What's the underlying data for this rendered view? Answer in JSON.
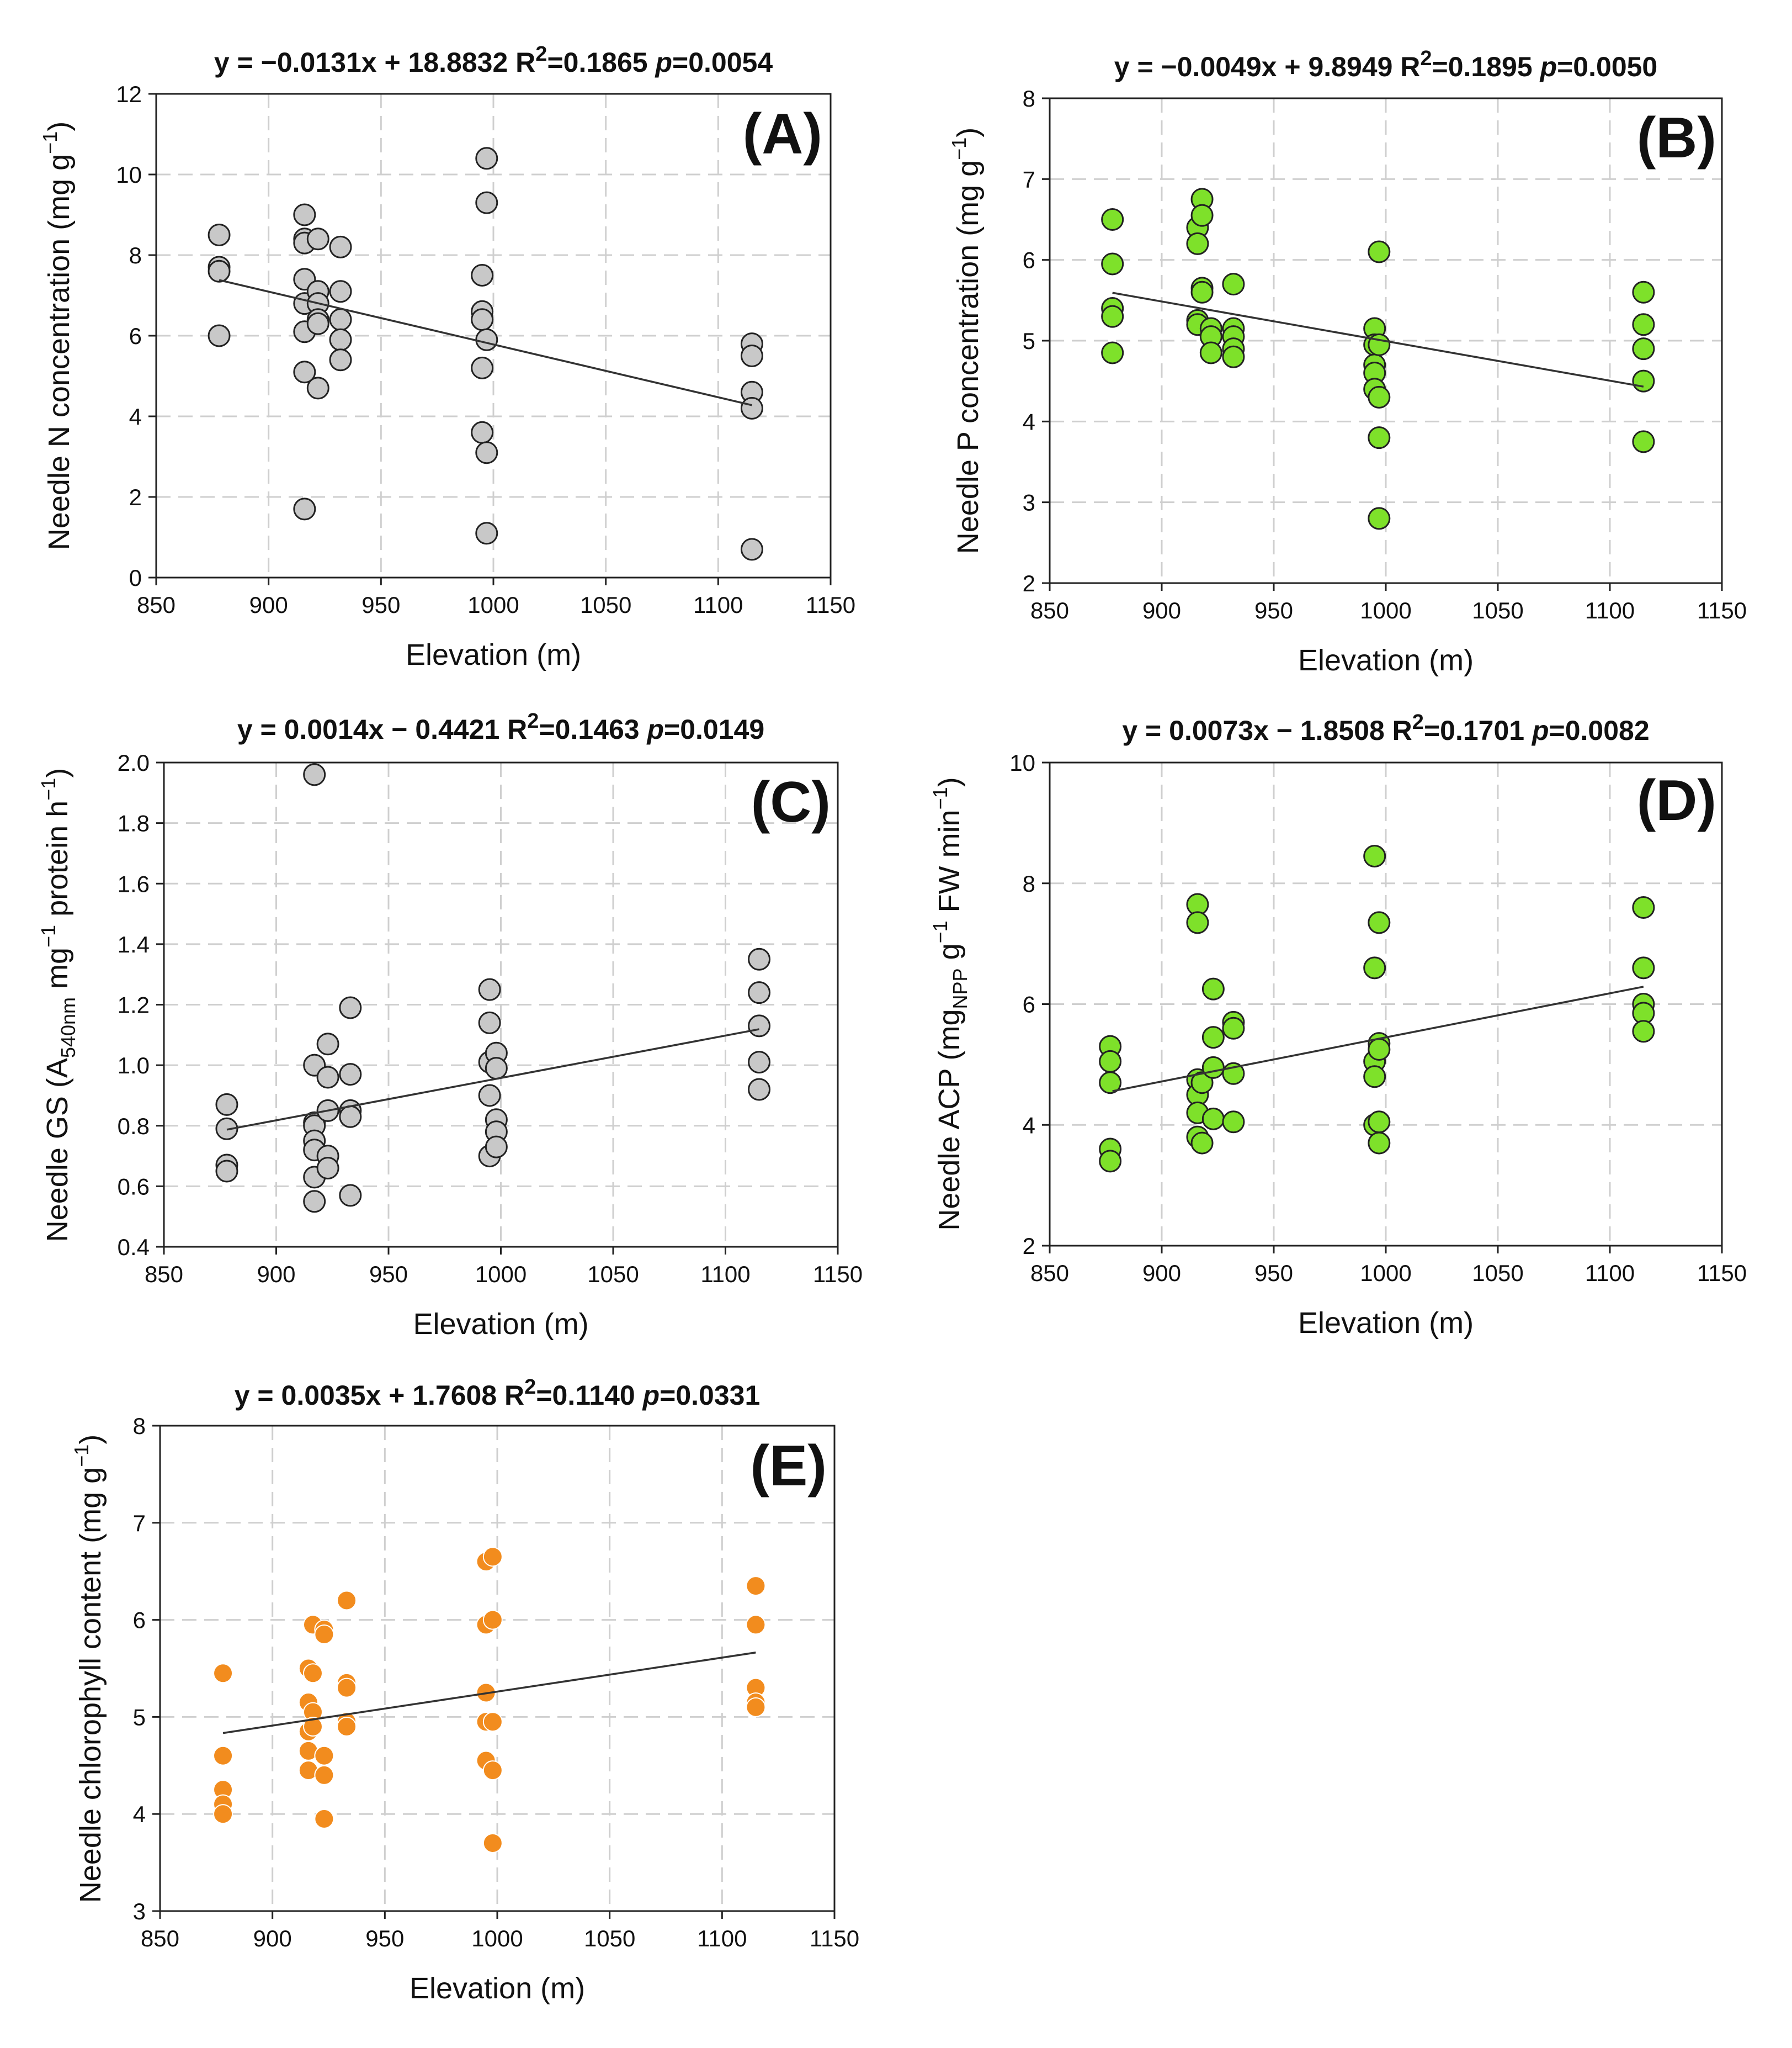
{
  "figure": {
    "x_axis_title": "Elevation (m)"
  },
  "chart_data": [
    {
      "type": "scatter",
      "panel": "(A)",
      "title": {
        "pre": "y = −0.0131x + 18.8832 R",
        "sup": "2",
        "mid": "=0.1865 ",
        "p_label": "p",
        "p_value": "=0.0054"
      },
      "ylabel": {
        "main": "Needle N concentration (mg g",
        "sup": "−1",
        "tail": ")"
      },
      "xlabel": "Elevation (m)",
      "xlim": [
        850,
        1150
      ],
      "ylim": [
        0,
        12
      ],
      "x_ticks": [
        850,
        900,
        950,
        1000,
        1050,
        1100,
        1150
      ],
      "x_tick_labels": [
        "850",
        "900",
        "950",
        "1000",
        "1050",
        "1100",
        "1150"
      ],
      "y_ticks": [
        0,
        2,
        4,
        6,
        8,
        10,
        12
      ],
      "y_tick_labels": [
        "0",
        "2",
        "4",
        "6",
        "8",
        "10",
        "12"
      ],
      "marker_color": "#c8c8c8",
      "marker_style": "outlined",
      "fit": {
        "slope": -0.0131,
        "intercept": 18.8832,
        "x_start": 878,
        "x_end": 1115
      },
      "points": [
        {
          "x": 878,
          "y": 8.5
        },
        {
          "x": 878,
          "y": 7.7
        },
        {
          "x": 878,
          "y": 7.6
        },
        {
          "x": 878,
          "y": 6.0
        },
        {
          "x": 916,
          "y": 9.0
        },
        {
          "x": 916,
          "y": 8.4
        },
        {
          "x": 916,
          "y": 8.3
        },
        {
          "x": 916,
          "y": 7.4
        },
        {
          "x": 916,
          "y": 6.8
        },
        {
          "x": 916,
          "y": 6.1
        },
        {
          "x": 916,
          "y": 5.1
        },
        {
          "x": 916,
          "y": 1.7
        },
        {
          "x": 922,
          "y": 8.4
        },
        {
          "x": 922,
          "y": 7.1
        },
        {
          "x": 922,
          "y": 6.8
        },
        {
          "x": 922,
          "y": 6.4
        },
        {
          "x": 922,
          "y": 6.3
        },
        {
          "x": 922,
          "y": 4.7
        },
        {
          "x": 932,
          "y": 8.2
        },
        {
          "x": 932,
          "y": 7.1
        },
        {
          "x": 932,
          "y": 6.4
        },
        {
          "x": 932,
          "y": 5.9
        },
        {
          "x": 932,
          "y": 5.4
        },
        {
          "x": 995,
          "y": 7.5
        },
        {
          "x": 995,
          "y": 6.6
        },
        {
          "x": 995,
          "y": 6.4
        },
        {
          "x": 995,
          "y": 5.2
        },
        {
          "x": 995,
          "y": 3.6
        },
        {
          "x": 997,
          "y": 10.4
        },
        {
          "x": 997,
          "y": 9.3
        },
        {
          "x": 997,
          "y": 5.9
        },
        {
          "x": 997,
          "y": 3.1
        },
        {
          "x": 997,
          "y": 1.1
        },
        {
          "x": 1115,
          "y": 5.8
        },
        {
          "x": 1115,
          "y": 5.5
        },
        {
          "x": 1115,
          "y": 4.6
        },
        {
          "x": 1115,
          "y": 4.2
        },
        {
          "x": 1115,
          "y": 0.7
        }
      ]
    },
    {
      "type": "scatter",
      "panel": "(B)",
      "title": {
        "pre": "y = −0.0049x + 9.8949 R",
        "sup": "2",
        "mid": "=0.1895 ",
        "p_label": "p",
        "p_value": "=0.0050"
      },
      "ylabel": {
        "main": "Needle P concentration (mg g",
        "sup": "−1",
        "tail": ")"
      },
      "xlabel": "Elevation (m)",
      "xlim": [
        850,
        1150
      ],
      "ylim": [
        2,
        8
      ],
      "x_ticks": [
        850,
        900,
        950,
        1000,
        1050,
        1100,
        1150
      ],
      "x_tick_labels": [
        "850",
        "900",
        "950",
        "1000",
        "1050",
        "1100",
        "1150"
      ],
      "y_ticks": [
        2,
        3,
        4,
        5,
        6,
        7,
        8
      ],
      "y_tick_labels": [
        "2",
        "3",
        "4",
        "5",
        "6",
        "7",
        "8"
      ],
      "marker_color": "#7ee12a",
      "marker_style": "outlined",
      "fit": {
        "slope": -0.0049,
        "intercept": 9.8949,
        "x_start": 878,
        "x_end": 1115
      },
      "points": [
        {
          "x": 878,
          "y": 6.5
        },
        {
          "x": 878,
          "y": 5.95
        },
        {
          "x": 878,
          "y": 5.4
        },
        {
          "x": 878,
          "y": 5.3
        },
        {
          "x": 878,
          "y": 4.85
        },
        {
          "x": 916,
          "y": 6.4
        },
        {
          "x": 916,
          "y": 6.2
        },
        {
          "x": 916,
          "y": 5.25
        },
        {
          "x": 916,
          "y": 5.2
        },
        {
          "x": 918,
          "y": 6.75
        },
        {
          "x": 918,
          "y": 6.55
        },
        {
          "x": 918,
          "y": 5.65
        },
        {
          "x": 918,
          "y": 5.6
        },
        {
          "x": 922,
          "y": 5.15
        },
        {
          "x": 922,
          "y": 5.05
        },
        {
          "x": 922,
          "y": 4.85
        },
        {
          "x": 932,
          "y": 5.7
        },
        {
          "x": 932,
          "y": 5.15
        },
        {
          "x": 932,
          "y": 5.05
        },
        {
          "x": 932,
          "y": 4.9
        },
        {
          "x": 932,
          "y": 4.8
        },
        {
          "x": 995,
          "y": 5.15
        },
        {
          "x": 995,
          "y": 4.95
        },
        {
          "x": 995,
          "y": 4.7
        },
        {
          "x": 995,
          "y": 4.6
        },
        {
          "x": 995,
          "y": 4.4
        },
        {
          "x": 997,
          "y": 6.1
        },
        {
          "x": 997,
          "y": 4.95
        },
        {
          "x": 997,
          "y": 4.3
        },
        {
          "x": 997,
          "y": 3.8
        },
        {
          "x": 997,
          "y": 2.8
        },
        {
          "x": 1115,
          "y": 5.6
        },
        {
          "x": 1115,
          "y": 5.2
        },
        {
          "x": 1115,
          "y": 4.9
        },
        {
          "x": 1115,
          "y": 4.5
        },
        {
          "x": 1115,
          "y": 3.75
        }
      ]
    },
    {
      "type": "scatter",
      "panel": "(C)",
      "title": {
        "pre": "y = 0.0014x − 0.4421 R",
        "sup": "2",
        "mid": "=0.1463 ",
        "p_label": "p",
        "p_value": "=0.0149"
      },
      "ylabel": {
        "main": "Needle GS (A",
        "sub": "540nm",
        "mid": " mg",
        "sup1": "−1",
        "mid2": " protein h",
        "sup2": "−1",
        "tail": ")"
      },
      "xlabel": "Elevation (m)",
      "xlim": [
        850,
        1150
      ],
      "ylim": [
        0.4,
        2.0
      ],
      "x_ticks": [
        850,
        900,
        950,
        1000,
        1050,
        1100,
        1150
      ],
      "x_tick_labels": [
        "850",
        "900",
        "950",
        "1000",
        "1050",
        "1100",
        "1150"
      ],
      "y_ticks": [
        0.4,
        0.6,
        0.8,
        1.0,
        1.2,
        1.4,
        1.6,
        1.8,
        2.0
      ],
      "y_tick_labels": [
        "0.4",
        "0.6",
        "0.8",
        "1.0",
        "1.2",
        "1.4",
        "1.6",
        "1.8",
        "2.0"
      ],
      "marker_color": "#c8c8c8",
      "marker_style": "outlined",
      "fit": {
        "slope": 0.0014,
        "intercept": -0.4421,
        "x_start": 878,
        "x_end": 1115
      },
      "points": [
        {
          "x": 878,
          "y": 0.87
        },
        {
          "x": 878,
          "y": 0.79
        },
        {
          "x": 878,
          "y": 0.67
        },
        {
          "x": 878,
          "y": 0.65
        },
        {
          "x": 917,
          "y": 1.96
        },
        {
          "x": 917,
          "y": 1.0
        },
        {
          "x": 917,
          "y": 0.81
        },
        {
          "x": 917,
          "y": 0.8
        },
        {
          "x": 917,
          "y": 0.75
        },
        {
          "x": 917,
          "y": 0.72
        },
        {
          "x": 917,
          "y": 0.63
        },
        {
          "x": 917,
          "y": 0.55
        },
        {
          "x": 923,
          "y": 1.07
        },
        {
          "x": 923,
          "y": 0.96
        },
        {
          "x": 923,
          "y": 0.85
        },
        {
          "x": 923,
          "y": 0.7
        },
        {
          "x": 923,
          "y": 0.66
        },
        {
          "x": 933,
          "y": 1.19
        },
        {
          "x": 933,
          "y": 0.97
        },
        {
          "x": 933,
          "y": 0.85
        },
        {
          "x": 933,
          "y": 0.83
        },
        {
          "x": 933,
          "y": 0.57
        },
        {
          "x": 995,
          "y": 1.25
        },
        {
          "x": 995,
          "y": 1.14
        },
        {
          "x": 995,
          "y": 1.01
        },
        {
          "x": 995,
          "y": 0.9
        },
        {
          "x": 995,
          "y": 0.7
        },
        {
          "x": 998,
          "y": 1.04
        },
        {
          "x": 998,
          "y": 0.99
        },
        {
          "x": 998,
          "y": 0.82
        },
        {
          "x": 998,
          "y": 0.78
        },
        {
          "x": 998,
          "y": 0.73
        },
        {
          "x": 1115,
          "y": 1.35
        },
        {
          "x": 1115,
          "y": 1.24
        },
        {
          "x": 1115,
          "y": 1.13
        },
        {
          "x": 1115,
          "y": 1.01
        },
        {
          "x": 1115,
          "y": 0.92
        }
      ]
    },
    {
      "type": "scatter",
      "panel": "(D)",
      "title": {
        "pre": "y = 0.0073x − 1.8508 R",
        "sup": "2",
        "mid": "=0.1701 ",
        "p_label": "p",
        "p_value": "=0.0082"
      },
      "ylabel": {
        "main": "Needle ACP (mg",
        "sub": "NPP",
        "mid": " g",
        "sup1": "−1",
        "mid2": " FW min",
        "sup2": "−1",
        "tail": ")"
      },
      "xlabel": "Elevation (m)",
      "xlim": [
        850,
        1150
      ],
      "ylim": [
        2,
        10
      ],
      "x_ticks": [
        850,
        900,
        950,
        1000,
        1050,
        1100,
        1150
      ],
      "x_tick_labels": [
        "850",
        "900",
        "950",
        "1000",
        "1050",
        "1100",
        "1150"
      ],
      "y_ticks": [
        2,
        4,
        6,
        8,
        10
      ],
      "y_tick_labels": [
        "2",
        "4",
        "6",
        "8",
        "10"
      ],
      "marker_color": "#7ee12a",
      "marker_style": "outlined",
      "fit": {
        "slope": 0.0073,
        "intercept": -1.8508,
        "x_start": 878,
        "x_end": 1115
      },
      "points": [
        {
          "x": 877,
          "y": 5.3
        },
        {
          "x": 877,
          "y": 5.05
        },
        {
          "x": 877,
          "y": 4.7
        },
        {
          "x": 877,
          "y": 3.6
        },
        {
          "x": 877,
          "y": 3.4
        },
        {
          "x": 916,
          "y": 7.65
        },
        {
          "x": 916,
          "y": 7.35
        },
        {
          "x": 916,
          "y": 4.75
        },
        {
          "x": 916,
          "y": 4.5
        },
        {
          "x": 916,
          "y": 4.2
        },
        {
          "x": 916,
          "y": 3.8
        },
        {
          "x": 918,
          "y": 4.7
        },
        {
          "x": 918,
          "y": 3.7
        },
        {
          "x": 923,
          "y": 6.25
        },
        {
          "x": 923,
          "y": 5.45
        },
        {
          "x": 923,
          "y": 4.95
        },
        {
          "x": 923,
          "y": 4.1
        },
        {
          "x": 932,
          "y": 5.7
        },
        {
          "x": 932,
          "y": 5.6
        },
        {
          "x": 932,
          "y": 4.85
        },
        {
          "x": 932,
          "y": 4.05
        },
        {
          "x": 995,
          "y": 8.45
        },
        {
          "x": 995,
          "y": 6.6
        },
        {
          "x": 995,
          "y": 5.05
        },
        {
          "x": 995,
          "y": 4.8
        },
        {
          "x": 995,
          "y": 4.0
        },
        {
          "x": 997,
          "y": 7.35
        },
        {
          "x": 997,
          "y": 5.35
        },
        {
          "x": 997,
          "y": 5.25
        },
        {
          "x": 997,
          "y": 4.05
        },
        {
          "x": 997,
          "y": 3.7
        },
        {
          "x": 1115,
          "y": 7.6
        },
        {
          "x": 1115,
          "y": 6.6
        },
        {
          "x": 1115,
          "y": 6.0
        },
        {
          "x": 1115,
          "y": 5.85
        },
        {
          "x": 1115,
          "y": 5.55
        }
      ]
    },
    {
      "type": "scatter",
      "panel": "(E)",
      "title": {
        "pre": "y = 0.0035x + 1.7608 R",
        "sup": "2",
        "mid": "=0.1140 ",
        "p_label": "p",
        "p_value": "=0.0331"
      },
      "ylabel": {
        "main": "Needle chlorophyll content (mg g",
        "sup": "−1",
        "tail": ")"
      },
      "xlabel": "Elevation (m)",
      "xlim": [
        850,
        1150
      ],
      "ylim": [
        3,
        8
      ],
      "x_ticks": [
        850,
        900,
        950,
        1000,
        1050,
        1100,
        1150
      ],
      "x_tick_labels": [
        "850",
        "900",
        "950",
        "1000",
        "1050",
        "1100",
        "1150"
      ],
      "y_ticks": [
        3,
        4,
        5,
        6,
        7,
        8
      ],
      "y_tick_labels": [
        "3",
        "4",
        "5",
        "6",
        "7",
        "8"
      ],
      "marker_color": "#f28c1e",
      "marker_style": "plain",
      "fit": {
        "slope": 0.0035,
        "intercept": 1.7608,
        "x_start": 878,
        "x_end": 1115
      },
      "points": [
        {
          "x": 878,
          "y": 5.45
        },
        {
          "x": 878,
          "y": 4.6
        },
        {
          "x": 878,
          "y": 4.25
        },
        {
          "x": 878,
          "y": 4.1
        },
        {
          "x": 878,
          "y": 4.0
        },
        {
          "x": 916,
          "y": 5.5
        },
        {
          "x": 916,
          "y": 5.15
        },
        {
          "x": 916,
          "y": 4.85
        },
        {
          "x": 916,
          "y": 4.65
        },
        {
          "x": 916,
          "y": 4.45
        },
        {
          "x": 918,
          "y": 5.95
        },
        {
          "x": 918,
          "y": 5.45
        },
        {
          "x": 918,
          "y": 5.05
        },
        {
          "x": 918,
          "y": 4.9
        },
        {
          "x": 923,
          "y": 5.9
        },
        {
          "x": 923,
          "y": 5.85
        },
        {
          "x": 923,
          "y": 4.6
        },
        {
          "x": 923,
          "y": 4.4
        },
        {
          "x": 923,
          "y": 3.95
        },
        {
          "x": 933,
          "y": 6.2
        },
        {
          "x": 933,
          "y": 5.35
        },
        {
          "x": 933,
          "y": 5.3
        },
        {
          "x": 933,
          "y": 4.95
        },
        {
          "x": 933,
          "y": 4.9
        },
        {
          "x": 995,
          "y": 6.6
        },
        {
          "x": 995,
          "y": 5.95
        },
        {
          "x": 995,
          "y": 5.25
        },
        {
          "x": 995,
          "y": 4.95
        },
        {
          "x": 995,
          "y": 4.55
        },
        {
          "x": 998,
          "y": 6.65
        },
        {
          "x": 998,
          "y": 6.0
        },
        {
          "x": 998,
          "y": 4.95
        },
        {
          "x": 998,
          "y": 4.45
        },
        {
          "x": 998,
          "y": 3.7
        },
        {
          "x": 1115,
          "y": 6.35
        },
        {
          "x": 1115,
          "y": 5.95
        },
        {
          "x": 1115,
          "y": 5.3
        },
        {
          "x": 1115,
          "y": 5.15
        },
        {
          "x": 1115,
          "y": 5.1
        }
      ]
    }
  ]
}
